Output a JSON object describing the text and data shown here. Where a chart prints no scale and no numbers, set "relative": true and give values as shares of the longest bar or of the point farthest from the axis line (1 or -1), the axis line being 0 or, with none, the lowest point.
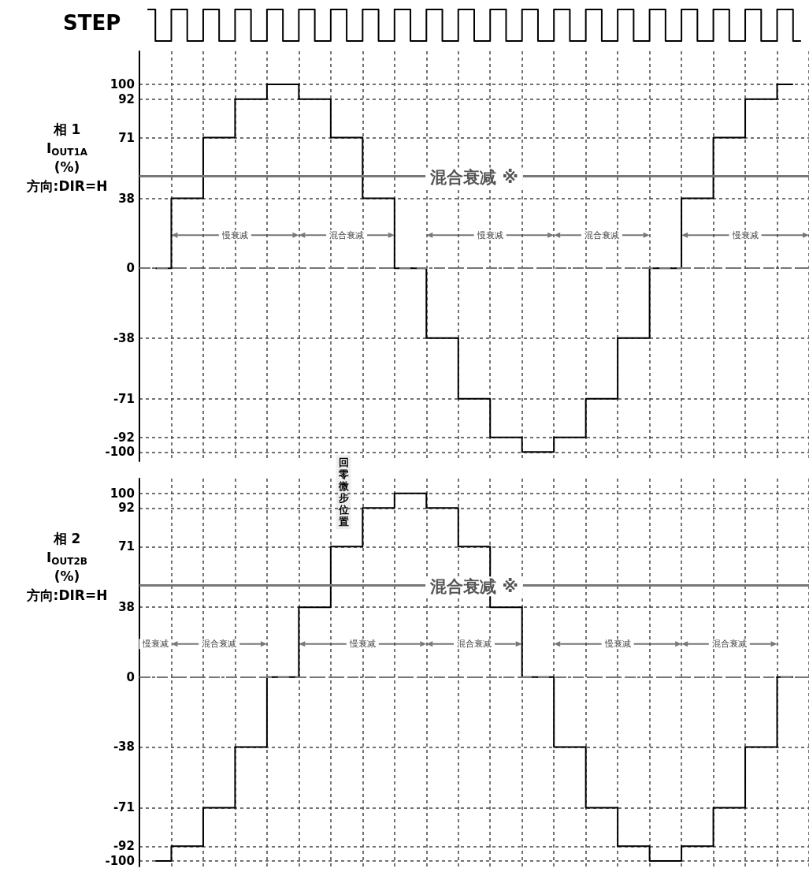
{
  "chart_data": [
    {
      "type": "step",
      "title": "STEP",
      "relative": true,
      "color": "#000000",
      "tick_labels": false,
      "categories": [
        null,
        null,
        null,
        null,
        null,
        null,
        null,
        null,
        null,
        null,
        null,
        null,
        null,
        null,
        null,
        null,
        null,
        null,
        null,
        null,
        null,
        null,
        null,
        null,
        null,
        null,
        null,
        null,
        null,
        null,
        null,
        null,
        null,
        null,
        null,
        null,
        null,
        null,
        null,
        null,
        null,
        null
      ],
      "values": [
        1,
        0,
        1,
        0,
        1,
        0,
        1,
        0,
        1,
        0,
        1,
        0,
        1,
        0,
        1,
        0,
        1,
        0,
        1,
        0,
        1,
        0,
        1,
        0,
        1,
        0,
        1,
        0,
        1,
        0,
        1,
        0,
        1,
        0,
        1,
        0,
        1,
        0,
        1,
        0,
        1,
        0
      ]
    },
    {
      "type": "step",
      "ylabel": "相 1\nI$_{OUT1A}$\n(%)\n方向:DIR=H",
      "color": "#000000",
      "grid": true,
      "tick_labels": "y",
      "categories": [
        null,
        null,
        null,
        null,
        null,
        null,
        null,
        null,
        null,
        null,
        null,
        null,
        null,
        null,
        null,
        null,
        null,
        null,
        null,
        null,
        null
      ],
      "values": [
        0,
        38,
        71,
        92,
        100,
        92,
        71,
        38,
        0,
        -38,
        -71,
        -92,
        -100,
        -92,
        -71,
        -38,
        0,
        38,
        71,
        92,
        100
      ],
      "ylim": [
        -105,
        118
      ],
      "yticks": [
        -100,
        -92,
        -71,
        -38,
        0,
        38,
        71,
        92,
        100
      ],
      "ref_lines": [
        {
          "axis": "y",
          "value": 0,
          "color": "#777777",
          "line_style": "dashed"
        },
        {
          "axis": "y",
          "value": 50,
          "label": "混合衰减 ※",
          "color": "#777777"
        }
      ],
      "annotations": [
        "慢衰减",
        "混合衰减",
        "慢衰减",
        "混合衰减",
        "慢衰减",
        "回零微步位置"
      ]
    },
    {
      "type": "step",
      "ylabel": "相 2\nI$_{OUT2B}$\n(%)\n方向:DIR=H",
      "color": "#000000",
      "grid": true,
      "tick_labels": "y",
      "categories": [
        null,
        null,
        null,
        null,
        null,
        null,
        null,
        null,
        null,
        null,
        null,
        null,
        null,
        null,
        null,
        null,
        null,
        null,
        null,
        null,
        null
      ],
      "values": [
        -100,
        -92,
        -71,
        -38,
        0,
        38,
        71,
        92,
        100,
        92,
        71,
        38,
        0,
        -38,
        -71,
        -92,
        -100,
        -92,
        -71,
        -38,
        0
      ],
      "ylim": [
        -103,
        108
      ],
      "yticks": [
        -100,
        -92,
        -71,
        -38,
        0,
        38,
        71,
        92,
        100
      ],
      "ref_lines": [
        {
          "axis": "y",
          "value": 0,
          "color": "#777777",
          "line_style": "dashed"
        },
        {
          "axis": "y",
          "value": 50,
          "label": "混合衰减 ※",
          "color": "#777777"
        }
      ],
      "annotations": [
        "慢衰减",
        "混合衰减",
        "慢衰减",
        "混合衰减",
        "慢衰减",
        "混合衰减"
      ]
    }
  ]
}
